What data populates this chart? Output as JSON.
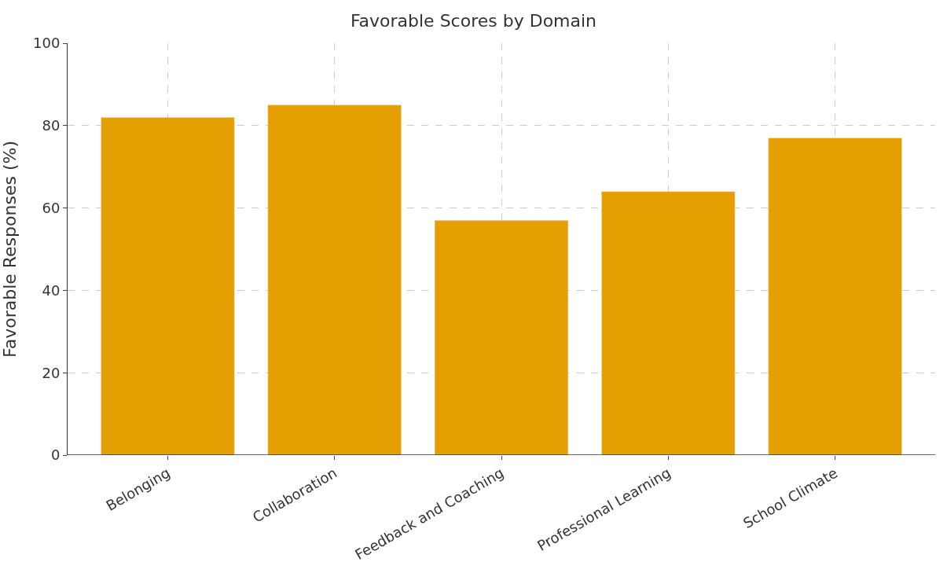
{
  "chart_data": {
    "type": "bar",
    "title": "Favorable Scores by Domain",
    "ylabel": "Favorable Responses (%)",
    "categories": [
      "Belonging",
      "Collaboration",
      "Feedback and Coaching",
      "Professional Learning",
      "School Climate"
    ],
    "values": [
      82,
      85,
      57,
      64,
      77
    ],
    "color": "#e69f00",
    "ylim": [
      0,
      100
    ],
    "yticks": [
      0,
      20,
      40,
      60,
      80,
      100
    ],
    "grid": true
  }
}
